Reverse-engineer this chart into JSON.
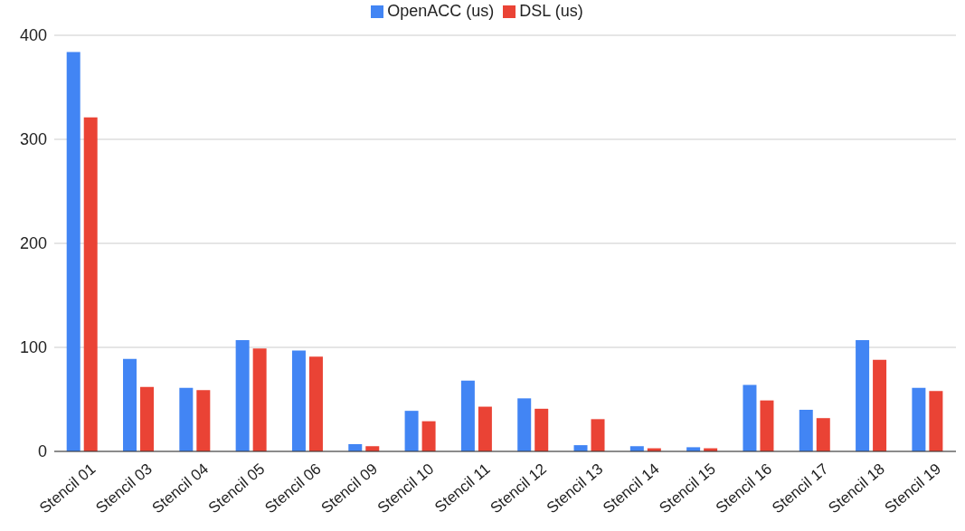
{
  "chart_data": {
    "type": "bar",
    "categories": [
      "Stencil 01",
      "Stencil 03",
      "Stencil 04",
      "Stencil 05",
      "Stencil 06",
      "Stencil 09",
      "Stencil 10",
      "Stencil 11",
      "Stencil 12",
      "Stencil 13",
      "Stencil 14",
      "Stencil 15",
      "Stencil 16",
      "Stencil 17",
      "Stencil 18",
      "Stencil 19"
    ],
    "series": [
      {
        "name": "OpenACC (us)",
        "color": "#4285f4",
        "values": [
          384,
          89,
          61,
          107,
          97,
          7,
          39,
          68,
          51,
          6,
          5,
          4,
          64,
          40,
          107,
          61
        ]
      },
      {
        "name": "DSL (us)",
        "color": "#ea4335",
        "values": [
          321,
          62,
          59,
          99,
          91,
          5,
          29,
          43,
          41,
          31,
          3,
          3,
          49,
          32,
          88,
          58
        ]
      }
    ],
    "ylim": [
      0,
      400
    ],
    "yticks": [
      0,
      100,
      200,
      300,
      400
    ],
    "grid": "y",
    "legend": "top"
  }
}
